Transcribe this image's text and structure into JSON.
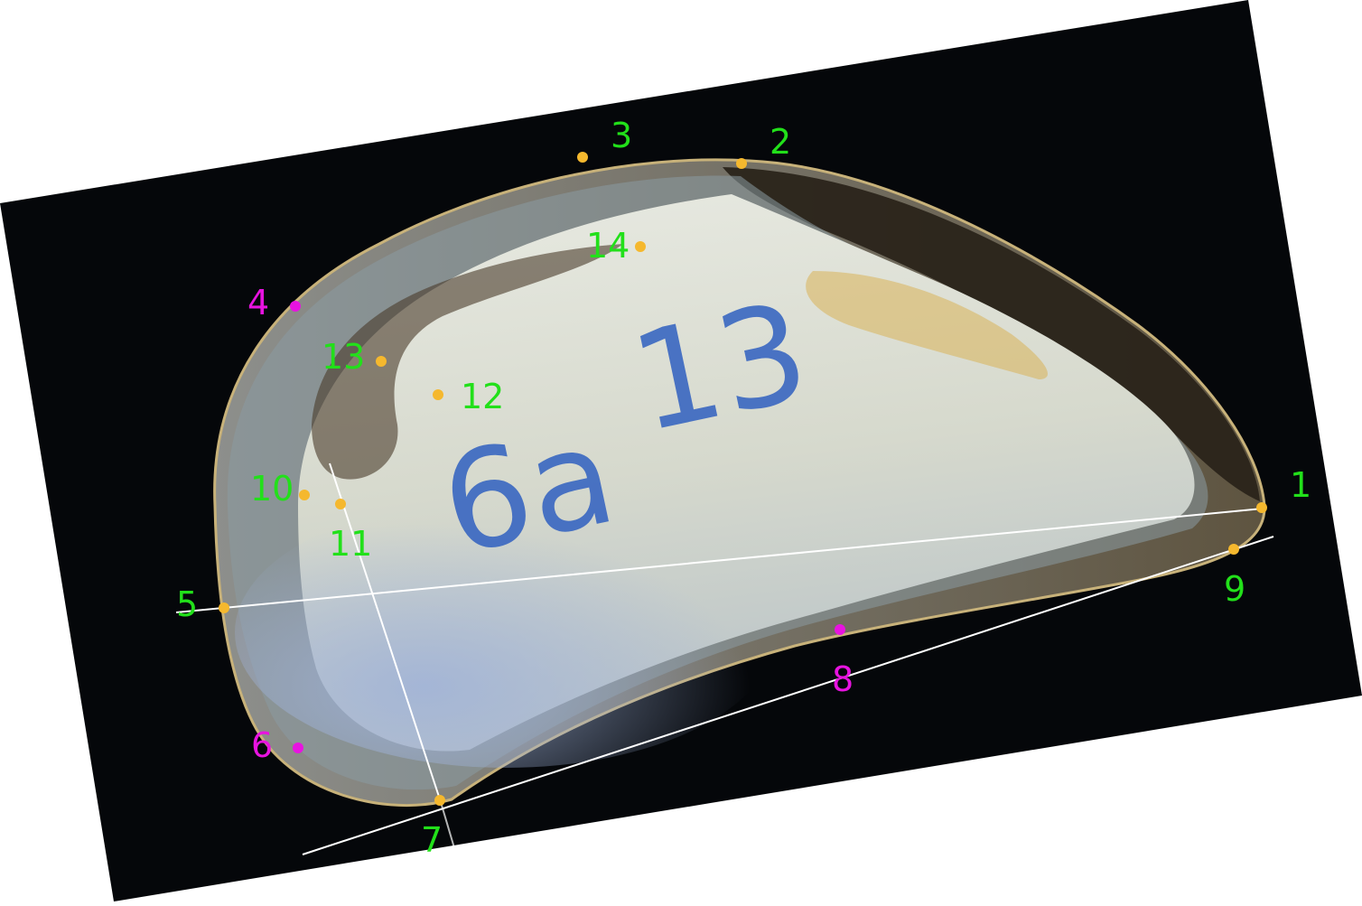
{
  "image": {
    "subject": "mussel shell interior with morphometric landmarks",
    "colors": {
      "background": "#05070a",
      "canvas_outside": "#ffffff",
      "shell_nacre": "#d9dcd2",
      "shell_edge": "#2b2418",
      "landmark_type_a": "#f5b82e",
      "landmark_type_b": "#e813e0",
      "label_type_a": "#22e01a",
      "label_type_b": "#e813e0",
      "guide_lines": "#ffffff",
      "ink": "#2f5fc0"
    }
  },
  "specimen_marking": {
    "left": "6a",
    "right": "13"
  },
  "landmarks": [
    {
      "label": "1",
      "type": "a"
    },
    {
      "label": "2",
      "type": "a"
    },
    {
      "label": "3",
      "type": "a"
    },
    {
      "label": "4",
      "type": "b"
    },
    {
      "label": "5",
      "type": "a"
    },
    {
      "label": "6",
      "type": "b"
    },
    {
      "label": "7",
      "type": "a"
    },
    {
      "label": "8",
      "type": "b"
    },
    {
      "label": "9",
      "type": "a"
    },
    {
      "label": "10",
      "type": "a"
    },
    {
      "label": "11",
      "type": "a"
    },
    {
      "label": "12",
      "type": "a"
    },
    {
      "label": "13",
      "type": "a"
    },
    {
      "label": "14",
      "type": "a"
    }
  ]
}
